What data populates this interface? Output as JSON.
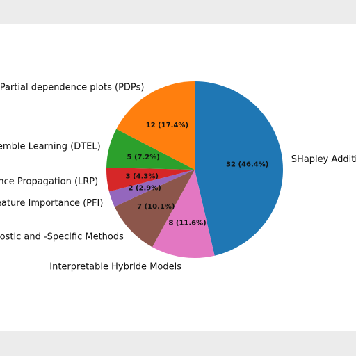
{
  "chart_data": {
    "type": "pie",
    "title": "",
    "slices": [
      {
        "label": "SHapley Additive exPlanations (SHAP)",
        "value": 32,
        "value_label": "32 (46.4%)",
        "color": "#1f77b4"
      },
      {
        "label": "Interpretable Hybride Models",
        "value": 8,
        "value_label": "8 (11.6%)",
        "color": "#e377c2"
      },
      {
        "label": "Model-Agnostic and -Specific Methods",
        "value": 7,
        "value_label": "7 (10.1%)",
        "color": "#8c564b"
      },
      {
        "label": "Permutation Feature Importance (PFI)",
        "value": 2,
        "value_label": "2 (2.9%)",
        "color": "#9467bd"
      },
      {
        "label": "Layer-wise Relevance Propagation (LRP)",
        "value": 3,
        "value_label": "3 (4.3%)",
        "color": "#d62728"
      },
      {
        "label": "Decision Tree Ensemble Learning (DTEL)",
        "value": 5,
        "value_label": "5 (7.2%)",
        "color": "#2ca02c"
      },
      {
        "label": "Partial dependence plots (PDPs)",
        "value": 12,
        "value_label": "12 (17.4%)",
        "color": "#ff7f0e"
      }
    ],
    "start_angle_deg": 90,
    "direction": "clockwise"
  }
}
